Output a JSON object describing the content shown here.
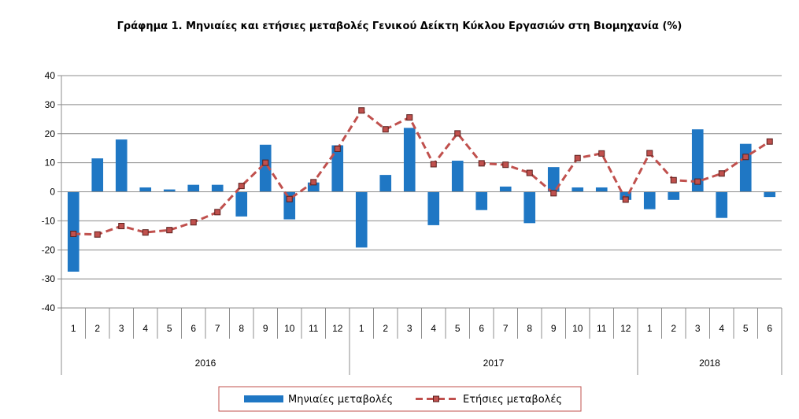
{
  "chart_data": {
    "type": "bar",
    "title": "Γράφημα 1. Μηνιαίες και ετήσιες μεταβολές  Γενικού Δείκτη Κύκλου Εργασιών στη Βιομηχανία (%)",
    "xlabel": "",
    "ylabel": "",
    "ylim": [
      -40,
      40
    ],
    "yticks": [
      -40,
      -30,
      -20,
      -10,
      0,
      10,
      20,
      30,
      40
    ],
    "grid": true,
    "legend_position": "bottom",
    "categories": [
      "1",
      "2",
      "3",
      "4",
      "5",
      "6",
      "7",
      "8",
      "9",
      "10",
      "11",
      "12",
      "1",
      "2",
      "3",
      "4",
      "5",
      "6",
      "7",
      "8",
      "9",
      "10",
      "11",
      "12",
      "1",
      "2",
      "3",
      "4",
      "5",
      "6"
    ],
    "year_groups": [
      {
        "label": "2016",
        "count": 12
      },
      {
        "label": "2017",
        "count": 12
      },
      {
        "label": "2018",
        "count": 6
      }
    ],
    "series": [
      {
        "name": "Μηνιαίες μεταβολές",
        "type": "bar",
        "color": "#1f77c4",
        "values": [
          -27.5,
          11.5,
          18.0,
          1.5,
          0.8,
          2.4,
          2.4,
          -8.5,
          16.2,
          -9.5,
          3.2,
          16.0,
          -19.2,
          5.8,
          22.0,
          -11.5,
          10.7,
          -6.3,
          1.8,
          -10.8,
          8.5,
          1.5,
          1.5,
          -2.8,
          -6.0,
          -2.8,
          21.5,
          -9.0,
          16.5,
          -1.8
        ]
      },
      {
        "name": "Ετήσιες μεταβολές",
        "type": "line",
        "color": "#c0504d",
        "values": [
          -14.5,
          -14.7,
          -11.8,
          -14.0,
          -13.2,
          -10.5,
          -7.0,
          2.0,
          10.0,
          -2.5,
          3.3,
          14.8,
          28.0,
          21.5,
          25.6,
          9.5,
          20.1,
          9.8,
          9.3,
          6.5,
          -0.5,
          11.6,
          13.2,
          -2.7,
          13.3,
          4.0,
          3.5,
          6.3,
          12.0,
          17.3
        ]
      }
    ]
  }
}
